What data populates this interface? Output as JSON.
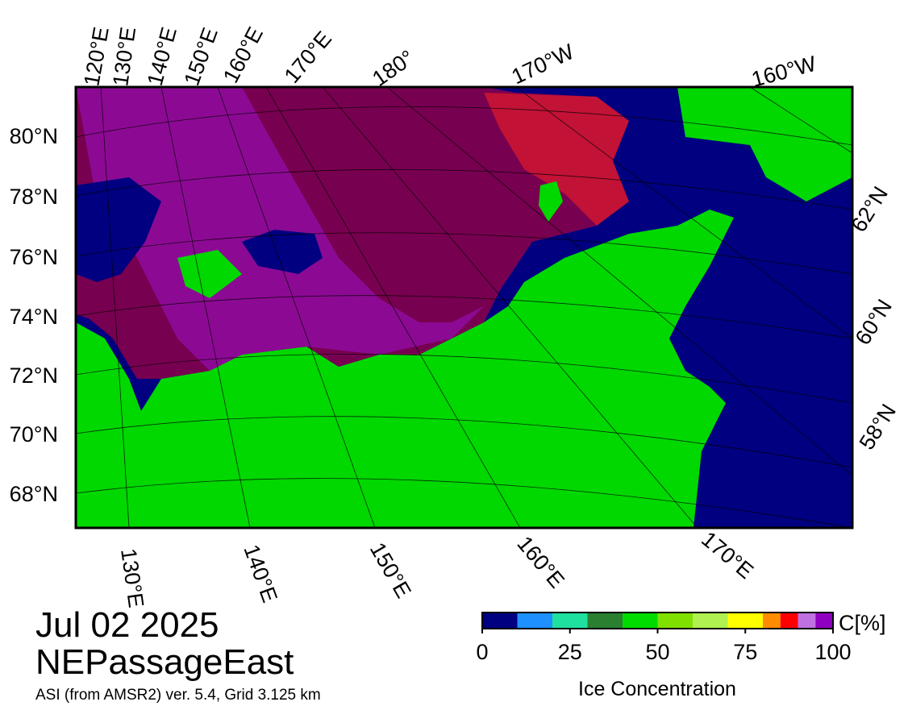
{
  "title": {
    "date": "Jul 02 2025",
    "region": "NEPassageEast",
    "source": "ASI (from AMSR2) ver. 5.4,  Grid 3.125 km"
  },
  "map": {
    "top_labels": [
      "120°E",
      "130°E",
      "140°E",
      "150°E",
      "160°E",
      "170°E",
      "180°",
      "170°W",
      "160°W"
    ],
    "left_labels": [
      "80°N",
      "78°N",
      "76°N",
      "74°N",
      "72°N",
      "70°N",
      "68°N"
    ],
    "right_labels": [
      "62°N",
      "60°N",
      "58°N"
    ],
    "bottom_labels": [
      "130°E",
      "140°E",
      "150°E",
      "160°E",
      "170°E"
    ]
  },
  "colorbar": {
    "label": "Ice Concentration",
    "unit": "C[%]",
    "range": [
      0,
      100
    ],
    "ticks": [
      0,
      25,
      50,
      75,
      100
    ],
    "bins": [
      0,
      10,
      20,
      30,
      40,
      50,
      60,
      70,
      80,
      85,
      90,
      95,
      100
    ],
    "colors": [
      "#000080",
      "#1e90ff",
      "#20e0a0",
      "#2a8030",
      "#00dc00",
      "#80e000",
      "#b0f050",
      "#ffff00",
      "#ff8c00",
      "#ff0000",
      "#c070e0",
      "#9000c0"
    ]
  }
}
